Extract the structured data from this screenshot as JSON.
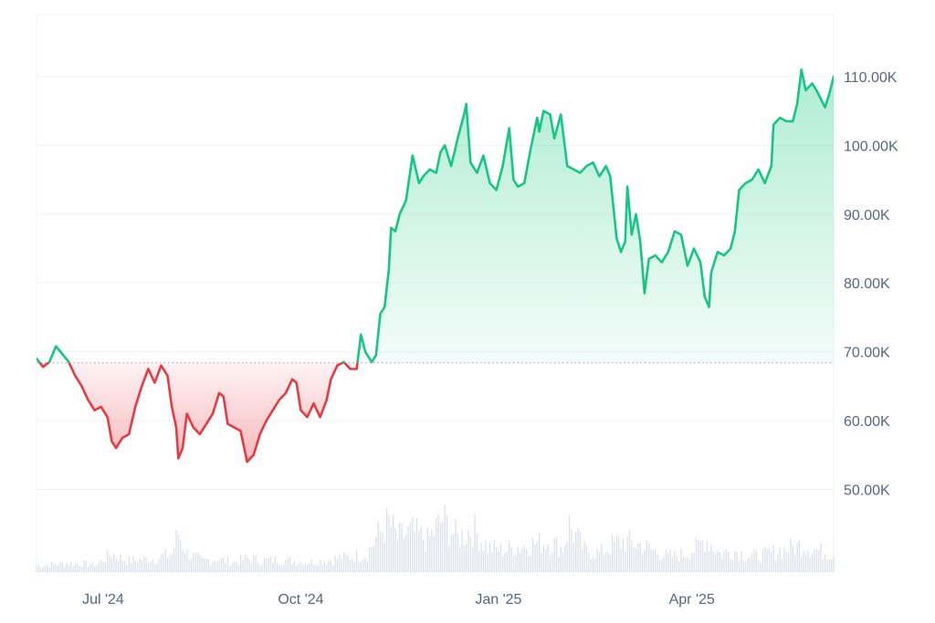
{
  "chart_data": {
    "type": "area",
    "title": "",
    "xlabel": "",
    "ylabel": "",
    "baseline": 68400,
    "ylim": [
      38000,
      119000
    ],
    "grid": true,
    "y_axis_position": "right",
    "y_ticks": [
      {
        "value": 50000,
        "label": "50.00K"
      },
      {
        "value": 60000,
        "label": "60.00K"
      },
      {
        "value": 70000,
        "label": "70.00K"
      },
      {
        "value": 80000,
        "label": "80.00K"
      },
      {
        "value": 90000,
        "label": "90.00K"
      },
      {
        "value": 100000,
        "label": "100.00K"
      },
      {
        "value": 110000,
        "label": "110.00K"
      }
    ],
    "x_ticks": [
      {
        "date": "2024-07-01",
        "label": "Jul '24"
      },
      {
        "date": "2024-10-01",
        "label": "Oct '24"
      },
      {
        "date": "2025-01-01",
        "label": "Jan '25"
      },
      {
        "date": "2025-04-01",
        "label": "Apr '25"
      }
    ],
    "x_range": [
      "2024-05-31",
      "2025-06-06"
    ],
    "colors": {
      "above": "#16c784",
      "below": "#ea3943",
      "above_fill": "#16c784",
      "below_fill": "#ea3943",
      "volume": "#cfd6e4",
      "grid": "#eff2f5",
      "baseline": "#a6b0c3"
    },
    "series": [
      {
        "values": [
          {
            "x": "2024-05-31",
            "y": 69000
          },
          {
            "x": "2024-06-03",
            "y": 67800
          },
          {
            "x": "2024-06-06",
            "y": 68500
          },
          {
            "x": "2024-06-09",
            "y": 70800
          },
          {
            "x": "2024-06-12",
            "y": 69700
          },
          {
            "x": "2024-06-15",
            "y": 68500
          },
          {
            "x": "2024-06-18",
            "y": 66500
          },
          {
            "x": "2024-06-21",
            "y": 65000
          },
          {
            "x": "2024-06-24",
            "y": 63000
          },
          {
            "x": "2024-06-27",
            "y": 61500
          },
          {
            "x": "2024-06-30",
            "y": 62000
          },
          {
            "x": "2024-07-03",
            "y": 60500
          },
          {
            "x": "2024-07-05",
            "y": 57000
          },
          {
            "x": "2024-07-07",
            "y": 56000
          },
          {
            "x": "2024-07-10",
            "y": 57500
          },
          {
            "x": "2024-07-13",
            "y": 58000
          },
          {
            "x": "2024-07-16",
            "y": 62000
          },
          {
            "x": "2024-07-19",
            "y": 65000
          },
          {
            "x": "2024-07-22",
            "y": 67500
          },
          {
            "x": "2024-07-25",
            "y": 65500
          },
          {
            "x": "2024-07-28",
            "y": 68000
          },
          {
            "x": "2024-07-31",
            "y": 66500
          },
          {
            "x": "2024-08-02",
            "y": 62000
          },
          {
            "x": "2024-08-04",
            "y": 59000
          },
          {
            "x": "2024-08-05",
            "y": 54500
          },
          {
            "x": "2024-08-07",
            "y": 56000
          },
          {
            "x": "2024-08-09",
            "y": 61000
          },
          {
            "x": "2024-08-12",
            "y": 59000
          },
          {
            "x": "2024-08-15",
            "y": 58000
          },
          {
            "x": "2024-08-18",
            "y": 59500
          },
          {
            "x": "2024-08-21",
            "y": 61000
          },
          {
            "x": "2024-08-24",
            "y": 64000
          },
          {
            "x": "2024-08-26",
            "y": 63500
          },
          {
            "x": "2024-08-28",
            "y": 59500
          },
          {
            "x": "2024-08-31",
            "y": 59000
          },
          {
            "x": "2024-09-03",
            "y": 58500
          },
          {
            "x": "2024-09-06",
            "y": 54000
          },
          {
            "x": "2024-09-09",
            "y": 55000
          },
          {
            "x": "2024-09-12",
            "y": 58000
          },
          {
            "x": "2024-09-15",
            "y": 60000
          },
          {
            "x": "2024-09-18",
            "y": 61500
          },
          {
            "x": "2024-09-21",
            "y": 63000
          },
          {
            "x": "2024-09-24",
            "y": 64000
          },
          {
            "x": "2024-09-27",
            "y": 66000
          },
          {
            "x": "2024-09-29",
            "y": 65500
          },
          {
            "x": "2024-10-01",
            "y": 61500
          },
          {
            "x": "2024-10-04",
            "y": 60500
          },
          {
            "x": "2024-10-07",
            "y": 62500
          },
          {
            "x": "2024-10-10",
            "y": 60500
          },
          {
            "x": "2024-10-13",
            "y": 63000
          },
          {
            "x": "2024-10-15",
            "y": 66000
          },
          {
            "x": "2024-10-18",
            "y": 68000
          },
          {
            "x": "2024-10-21",
            "y": 68500
          },
          {
            "x": "2024-10-24",
            "y": 67500
          },
          {
            "x": "2024-10-27",
            "y": 67500
          },
          {
            "x": "2024-10-29",
            "y": 72500
          },
          {
            "x": "2024-10-31",
            "y": 70000
          },
          {
            "x": "2024-11-03",
            "y": 68500
          },
          {
            "x": "2024-11-05",
            "y": 69500
          },
          {
            "x": "2024-11-07",
            "y": 75500
          },
          {
            "x": "2024-11-09",
            "y": 76500
          },
          {
            "x": "2024-11-11",
            "y": 82000
          },
          {
            "x": "2024-11-12",
            "y": 88000
          },
          {
            "x": "2024-11-14",
            "y": 87500
          },
          {
            "x": "2024-11-16",
            "y": 90000
          },
          {
            "x": "2024-11-19",
            "y": 92000
          },
          {
            "x": "2024-11-22",
            "y": 98500
          },
          {
            "x": "2024-11-25",
            "y": 94500
          },
          {
            "x": "2024-11-27",
            "y": 95500
          },
          {
            "x": "2024-11-30",
            "y": 96500
          },
          {
            "x": "2024-12-03",
            "y": 96000
          },
          {
            "x": "2024-12-05",
            "y": 99000
          },
          {
            "x": "2024-12-07",
            "y": 100000
          },
          {
            "x": "2024-12-10",
            "y": 97000
          },
          {
            "x": "2024-12-13",
            "y": 101000
          },
          {
            "x": "2024-12-16",
            "y": 104500
          },
          {
            "x": "2024-12-17",
            "y": 106000
          },
          {
            "x": "2024-12-19",
            "y": 97500
          },
          {
            "x": "2024-12-22",
            "y": 96000
          },
          {
            "x": "2024-12-25",
            "y": 98500
          },
          {
            "x": "2024-12-28",
            "y": 94500
          },
          {
            "x": "2024-12-31",
            "y": 93500
          },
          {
            "x": "2025-01-03",
            "y": 97000
          },
          {
            "x": "2025-01-06",
            "y": 102500
          },
          {
            "x": "2025-01-08",
            "y": 95000
          },
          {
            "x": "2025-01-10",
            "y": 94000
          },
          {
            "x": "2025-01-13",
            "y": 94500
          },
          {
            "x": "2025-01-16",
            "y": 99500
          },
          {
            "x": "2025-01-19",
            "y": 104000
          },
          {
            "x": "2025-01-20",
            "y": 102000
          },
          {
            "x": "2025-01-22",
            "y": 105000
          },
          {
            "x": "2025-01-25",
            "y": 104500
          },
          {
            "x": "2025-01-27",
            "y": 101000
          },
          {
            "x": "2025-01-30",
            "y": 104500
          },
          {
            "x": "2025-02-02",
            "y": 97000
          },
          {
            "x": "2025-02-05",
            "y": 96500
          },
          {
            "x": "2025-02-08",
            "y": 96000
          },
          {
            "x": "2025-02-11",
            "y": 97000
          },
          {
            "x": "2025-02-14",
            "y": 97500
          },
          {
            "x": "2025-02-17",
            "y": 95500
          },
          {
            "x": "2025-02-20",
            "y": 97000
          },
          {
            "x": "2025-02-22",
            "y": 95500
          },
          {
            "x": "2025-02-25",
            "y": 86500
          },
          {
            "x": "2025-02-27",
            "y": 84500
          },
          {
            "x": "2025-03-01",
            "y": 86000
          },
          {
            "x": "2025-03-02",
            "y": 94000
          },
          {
            "x": "2025-03-04",
            "y": 87000
          },
          {
            "x": "2025-03-06",
            "y": 90000
          },
          {
            "x": "2025-03-08",
            "y": 86000
          },
          {
            "x": "2025-03-10",
            "y": 78500
          },
          {
            "x": "2025-03-12",
            "y": 83500
          },
          {
            "x": "2025-03-15",
            "y": 84000
          },
          {
            "x": "2025-03-18",
            "y": 83000
          },
          {
            "x": "2025-03-21",
            "y": 84500
          },
          {
            "x": "2025-03-24",
            "y": 87500
          },
          {
            "x": "2025-03-27",
            "y": 87000
          },
          {
            "x": "2025-03-30",
            "y": 82500
          },
          {
            "x": "2025-04-02",
            "y": 85000
          },
          {
            "x": "2025-04-05",
            "y": 83000
          },
          {
            "x": "2025-04-07",
            "y": 78000
          },
          {
            "x": "2025-04-09",
            "y": 76500
          },
          {
            "x": "2025-04-10",
            "y": 81500
          },
          {
            "x": "2025-04-13",
            "y": 84500
          },
          {
            "x": "2025-04-16",
            "y": 84000
          },
          {
            "x": "2025-04-19",
            "y": 85000
          },
          {
            "x": "2025-04-21",
            "y": 87500
          },
          {
            "x": "2025-04-23",
            "y": 93500
          },
          {
            "x": "2025-04-26",
            "y": 94500
          },
          {
            "x": "2025-04-29",
            "y": 95000
          },
          {
            "x": "2025-05-02",
            "y": 96500
          },
          {
            "x": "2025-05-05",
            "y": 94500
          },
          {
            "x": "2025-05-08",
            "y": 97000
          },
          {
            "x": "2025-05-09",
            "y": 103000
          },
          {
            "x": "2025-05-12",
            "y": 104000
          },
          {
            "x": "2025-05-15",
            "y": 103500
          },
          {
            "x": "2025-05-18",
            "y": 103500
          },
          {
            "x": "2025-05-20",
            "y": 106000
          },
          {
            "x": "2025-05-22",
            "y": 111000
          },
          {
            "x": "2025-05-24",
            "y": 108000
          },
          {
            "x": "2025-05-27",
            "y": 109000
          },
          {
            "x": "2025-05-29",
            "y": 108000
          },
          {
            "x": "2025-06-02",
            "y": 105500
          },
          {
            "x": "2025-06-04",
            "y": 107500
          },
          {
            "x": "2025-06-06",
            "y": 110000
          }
        ]
      }
    ],
    "volume": [
      {
        "x": "2024-05-31",
        "v": 0.1
      },
      {
        "x": "2024-06-07",
        "v": 0.12
      },
      {
        "x": "2024-06-14",
        "v": 0.14
      },
      {
        "x": "2024-06-21",
        "v": 0.13
      },
      {
        "x": "2024-06-28",
        "v": 0.12
      },
      {
        "x": "2024-07-05",
        "v": 0.3
      },
      {
        "x": "2024-07-12",
        "v": 0.18
      },
      {
        "x": "2024-07-19",
        "v": 0.2
      },
      {
        "x": "2024-07-26",
        "v": 0.22
      },
      {
        "x": "2024-08-02",
        "v": 0.3
      },
      {
        "x": "2024-08-05",
        "v": 0.62
      },
      {
        "x": "2024-08-09",
        "v": 0.3
      },
      {
        "x": "2024-08-16",
        "v": 0.18
      },
      {
        "x": "2024-08-23",
        "v": 0.22
      },
      {
        "x": "2024-08-30",
        "v": 0.15
      },
      {
        "x": "2024-09-06",
        "v": 0.22
      },
      {
        "x": "2024-09-13",
        "v": 0.18
      },
      {
        "x": "2024-09-20",
        "v": 0.2
      },
      {
        "x": "2024-09-27",
        "v": 0.18
      },
      {
        "x": "2024-10-04",
        "v": 0.16
      },
      {
        "x": "2024-10-11",
        "v": 0.18
      },
      {
        "x": "2024-10-18",
        "v": 0.22
      },
      {
        "x": "2024-10-25",
        "v": 0.25
      },
      {
        "x": "2024-11-01",
        "v": 0.3
      },
      {
        "x": "2024-11-06",
        "v": 0.6
      },
      {
        "x": "2024-11-11",
        "v": 0.8
      },
      {
        "x": "2024-11-15",
        "v": 0.55
      },
      {
        "x": "2024-11-22",
        "v": 0.65
      },
      {
        "x": "2024-11-29",
        "v": 0.5
      },
      {
        "x": "2024-12-06",
        "v": 0.85
      },
      {
        "x": "2024-12-13",
        "v": 0.55
      },
      {
        "x": "2024-12-20",
        "v": 0.7
      },
      {
        "x": "2024-12-27",
        "v": 0.4
      },
      {
        "x": "2025-01-03",
        "v": 0.35
      },
      {
        "x": "2025-01-10",
        "v": 0.4
      },
      {
        "x": "2025-01-17",
        "v": 0.45
      },
      {
        "x": "2025-01-24",
        "v": 0.5
      },
      {
        "x": "2025-01-31",
        "v": 0.38
      },
      {
        "x": "2025-02-03",
        "v": 0.75
      },
      {
        "x": "2025-02-10",
        "v": 0.35
      },
      {
        "x": "2025-02-17",
        "v": 0.3
      },
      {
        "x": "2025-02-24",
        "v": 0.45
      },
      {
        "x": "2025-02-28",
        "v": 0.5
      },
      {
        "x": "2025-03-07",
        "v": 0.45
      },
      {
        "x": "2025-03-14",
        "v": 0.35
      },
      {
        "x": "2025-03-21",
        "v": 0.25
      },
      {
        "x": "2025-03-28",
        "v": 0.28
      },
      {
        "x": "2025-04-04",
        "v": 0.4
      },
      {
        "x": "2025-04-07",
        "v": 0.55
      },
      {
        "x": "2025-04-14",
        "v": 0.3
      },
      {
        "x": "2025-04-21",
        "v": 0.35
      },
      {
        "x": "2025-04-28",
        "v": 0.25
      },
      {
        "x": "2025-05-05",
        "v": 0.28
      },
      {
        "x": "2025-05-12",
        "v": 0.35
      },
      {
        "x": "2025-05-19",
        "v": 0.4
      },
      {
        "x": "2025-05-22",
        "v": 0.45
      },
      {
        "x": "2025-05-29",
        "v": 0.35
      },
      {
        "x": "2025-06-05",
        "v": 0.3
      }
    ]
  }
}
